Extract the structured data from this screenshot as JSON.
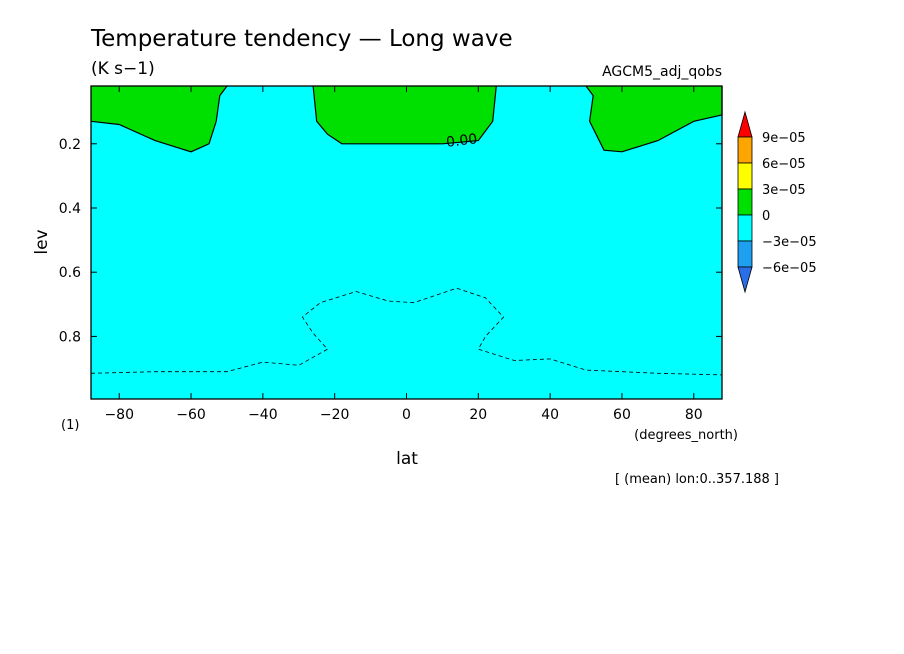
{
  "chart_data": {
    "type": "heatmap",
    "title": "Temperature tendency — Long wave",
    "units": "(K s−1)",
    "dataset": "AGCM5_adj_qobs",
    "xlabel": "lat",
    "xunits": "(degrees_north)",
    "ylabel": "lev",
    "yunits": "(1)",
    "footnote": "[ (mean) lon:0..357.188 ]",
    "xlim": [
      -87.86,
      87.86
    ],
    "ylim": [
      0.02,
      0.995
    ],
    "y_inverted": true,
    "xticks": [
      -80,
      -60,
      -40,
      -20,
      0,
      20,
      40,
      60,
      80
    ],
    "xtick_labels": [
      "−80",
      "−60",
      "−40",
      "−20",
      "0",
      "20",
      "40",
      "60",
      "80"
    ],
    "yticks": [
      0.2,
      0.4,
      0.6,
      0.8
    ],
    "ytick_labels": [
      "0.2",
      "0.4",
      "0.6",
      "0.8"
    ],
    "contour_label": "0.00",
    "colorbar": {
      "levels": [
        -9e-05,
        -6e-05,
        -3e-05,
        0,
        3e-05,
        6e-05,
        9e-05
      ],
      "labels": [
        "−6e−05",
        "−3e−05",
        "0",
        "3e−05",
        "6e−05",
        "9e−05"
      ],
      "colors": [
        "#2a6fe8",
        "#1ea0f0",
        "#00ffff",
        "#00e000",
        "#ffff00",
        "#ffa500",
        "#ff0000"
      ],
      "extend": "both"
    },
    "regions": [
      {
        "name": "positive",
        "range": [
          0,
          3e-05
        ],
        "color": "#00e000",
        "outline": [
          [
            -87.86,
            0.02
          ],
          [
            -87.86,
            0.13
          ],
          [
            -80,
            0.14
          ],
          [
            -70,
            0.19
          ],
          [
            -60,
            0.225
          ],
          [
            -55,
            0.2
          ],
          [
            -53,
            0.13
          ],
          [
            -52,
            0.05
          ],
          [
            -50,
            0.02
          ]
        ]
      },
      {
        "name": "positive",
        "range": [
          0,
          3e-05
        ],
        "color": "#00e000",
        "outline": [
          [
            -26,
            0.02
          ],
          [
            -25,
            0.13
          ],
          [
            -22,
            0.17
          ],
          [
            -18,
            0.2
          ],
          [
            0,
            0.2
          ],
          [
            10,
            0.2
          ],
          [
            20,
            0.19
          ],
          [
            24,
            0.13
          ],
          [
            25,
            0.02
          ]
        ]
      },
      {
        "name": "positive",
        "range": [
          0,
          3e-05
        ],
        "color": "#00e000",
        "outline": [
          [
            50,
            0.02
          ],
          [
            52,
            0.05
          ],
          [
            51,
            0.13
          ],
          [
            55,
            0.22
          ],
          [
            60,
            0.225
          ],
          [
            70,
            0.19
          ],
          [
            80,
            0.13
          ],
          [
            87.86,
            0.11
          ],
          [
            87.86,
            0.02
          ]
        ]
      }
    ],
    "negative_contour": [
      [
        [
          -87.86,
          0.915
        ],
        [
          -70,
          0.91
        ],
        [
          -50,
          0.91
        ],
        [
          -40,
          0.88
        ],
        [
          -30,
          0.89
        ],
        [
          -22,
          0.84
        ],
        [
          -26,
          0.79
        ],
        [
          -29,
          0.74
        ],
        [
          -24,
          0.695
        ],
        [
          -14,
          0.66
        ],
        [
          -5,
          0.69
        ],
        [
          2,
          0.695
        ],
        [
          14,
          0.65
        ],
        [
          22,
          0.68
        ],
        [
          27,
          0.74
        ],
        [
          22,
          0.8
        ],
        [
          20,
          0.84
        ],
        [
          30,
          0.875
        ],
        [
          40,
          0.87
        ],
        [
          50,
          0.905
        ],
        [
          70,
          0.915
        ],
        [
          87.86,
          0.92
        ]
      ]
    ]
  }
}
